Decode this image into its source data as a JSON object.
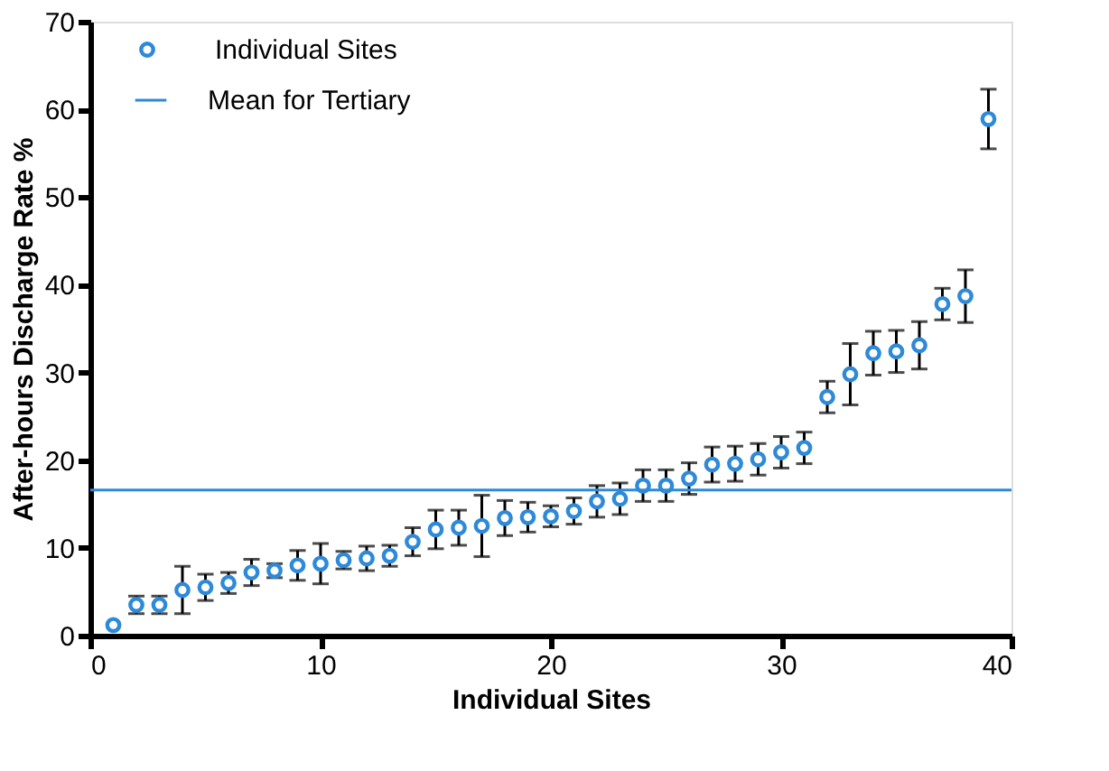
{
  "chart_data": {
    "type": "scatter",
    "xlabel": "Individual Sites",
    "ylabel": "After-hours Discharge Rate %",
    "x": [
      1,
      2,
      3,
      4,
      5,
      6,
      7,
      8,
      9,
      10,
      11,
      12,
      13,
      14,
      15,
      16,
      17,
      18,
      19,
      20,
      21,
      22,
      23,
      24,
      25,
      26,
      27,
      28,
      29,
      30,
      31,
      32,
      33,
      34,
      35,
      36,
      37,
      38,
      39
    ],
    "series": [
      {
        "name": "Individual Sites",
        "color": "#2e8ad8",
        "values": [
          1.2,
          3.5,
          3.5,
          5.2,
          5.5,
          6.0,
          7.2,
          7.4,
          8.0,
          8.2,
          8.6,
          8.8,
          9.1,
          10.7,
          12.1,
          12.3,
          12.5,
          13.4,
          13.5,
          13.6,
          14.2,
          15.3,
          15.6,
          17.1,
          17.1,
          17.9,
          19.5,
          19.6,
          20.1,
          20.9,
          21.4,
          27.2,
          29.8,
          32.2,
          32.4,
          33.1,
          37.8,
          38.7,
          58.9
        ],
        "errors": [
          null,
          1,
          1,
          2.7,
          1.5,
          1.2,
          1.5,
          0.8,
          1.7,
          2.3,
          1,
          1.4,
          1.2,
          1.6,
          2.2,
          2,
          3.5,
          2,
          1.7,
          1.2,
          1.5,
          1.8,
          1.8,
          1.8,
          1.8,
          1.8,
          2,
          2,
          1.8,
          1.8,
          1.8,
          1.8,
          3.5,
          2.5,
          2.4,
          2.7,
          1.8,
          3,
          3.4
        ]
      }
    ],
    "ref_lines": [
      {
        "axis": "y",
        "value": 16.6,
        "label": "Mean for Tertiary",
        "color": "#2e8ad8"
      }
    ],
    "xlim": [
      0,
      40
    ],
    "xticks": [
      0,
      10,
      20,
      30,
      40
    ],
    "ylim": [
      0,
      70
    ],
    "yticks": [
      0,
      10,
      20,
      30,
      40,
      50,
      60,
      70
    ],
    "marker": "circle",
    "grid": false,
    "legend": "top left"
  }
}
